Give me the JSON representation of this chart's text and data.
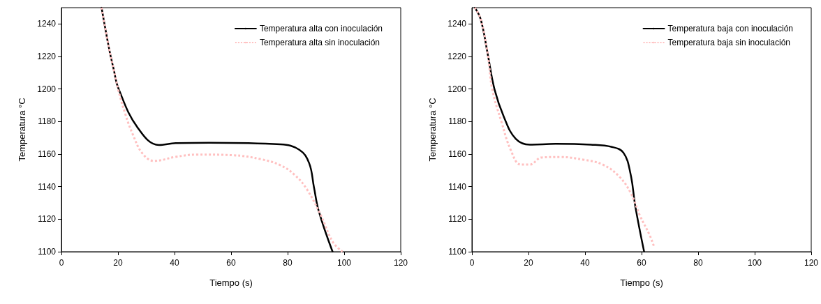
{
  "chart_data": [
    {
      "type": "line",
      "xlabel": "Tiempo (s)",
      "ylabel": "Temperatura °C",
      "xlim": [
        0,
        120
      ],
      "xticks": [
        0,
        20,
        40,
        60,
        80,
        100,
        120
      ],
      "ylim": [
        1100,
        1250
      ],
      "yticks": [
        1100,
        1120,
        1140,
        1160,
        1180,
        1200,
        1220,
        1240
      ],
      "grid": false,
      "legend": "top right",
      "marker": "none",
      "series": [
        {
          "name": "Temperatura alta con inoculación",
          "color": "#000000",
          "line_style": "solid",
          "x": [
            14.2,
            16.8,
            18.5,
            20.2,
            26.9,
            34.5,
            40.4,
            52.2,
            77.5,
            84.2,
            87.6,
            89.3,
            91,
            95.9
          ],
          "values": [
            1250,
            1225.3,
            1212,
            1200.2,
            1176.4,
            1165.6,
            1166.7,
            1167,
            1166,
            1162.6,
            1154.5,
            1139.8,
            1125,
            1100
          ]
        },
        {
          "name": "Temperatura alta sin inoculación",
          "color": "#ffc0c0",
          "line_style": "dotted",
          "x": [
            14.2,
            16.8,
            18.5,
            20.2,
            22.7,
            25.2,
            28.6,
            32.8,
            40.4,
            48,
            60.6,
            70.7,
            77.5,
            82.5,
            86.8,
            91.8,
            96,
            99.4
          ],
          "values": [
            1250,
            1225.3,
            1212,
            1198.8,
            1184,
            1172.3,
            1160.5,
            1155.8,
            1158.3,
            1159.7,
            1159.3,
            1156.8,
            1153.1,
            1147.2,
            1138.4,
            1122.2,
            1105.9,
            1100
          ]
        }
      ]
    },
    {
      "type": "line",
      "xlabel": "Tiempo (s)",
      "ylabel": "Temperatura °C",
      "xlim": [
        0,
        120
      ],
      "xticks": [
        0,
        20,
        40,
        60,
        80,
        100,
        120
      ],
      "ylim": [
        1100,
        1250
      ],
      "yticks": [
        1100,
        1120,
        1140,
        1160,
        1180,
        1200,
        1220,
        1240
      ],
      "grid": false,
      "legend": "top right",
      "marker": "none",
      "series": [
        {
          "name": "Temperatura baja con inoculación",
          "color": "#000000",
          "line_style": "solid",
          "x": [
            1,
            3.1,
            5.6,
            8,
            11.4,
            15.5,
            20.5,
            29.6,
            42,
            49.5,
            53.6,
            56.1,
            57.8,
            60.9
          ],
          "values": [
            1250,
            1242.9,
            1221.3,
            1199.7,
            1182.4,
            1169.4,
            1165.8,
            1166.3,
            1165.8,
            1164.4,
            1160.8,
            1147.8,
            1127.7,
            1100
          ]
        },
        {
          "name": "Temperatura baja sin inoculación",
          "color": "#ffc0c0",
          "line_style": "dotted",
          "x": [
            1,
            3.1,
            5.6,
            7.2,
            10.5,
            13.8,
            17.2,
            20.5,
            24.6,
            31.3,
            39.6,
            46.2,
            52,
            56.1,
            59.5,
            62.8,
            64.4
          ],
          "values": [
            1250,
            1242.9,
            1221.3,
            1199.7,
            1179.5,
            1162.2,
            1153.6,
            1153.6,
            1157.9,
            1158.2,
            1156.5,
            1153.6,
            1146.4,
            1136.3,
            1121.9,
            1110.4,
            1103.2
          ]
        }
      ]
    }
  ]
}
